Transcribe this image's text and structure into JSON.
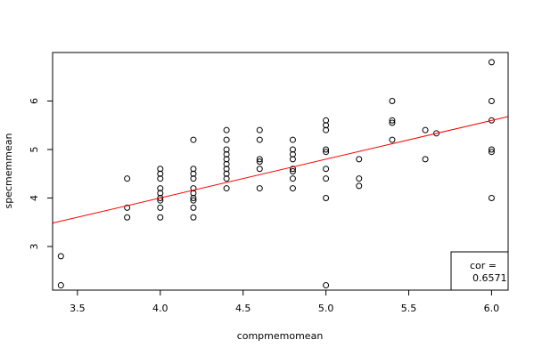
{
  "chart_data": {
    "type": "scatter",
    "title": "",
    "xlabel": "compmemomean",
    "ylabel": "specmemmean",
    "xlim": [
      3.35,
      6.1
    ],
    "ylim": [
      2.1,
      7.0
    ],
    "x_ticks": [
      3.5,
      4.0,
      4.5,
      5.0,
      5.5,
      6.0
    ],
    "x_tick_labels": [
      "3.5",
      "4.0",
      "4.5",
      "5.0",
      "5.5",
      "6.0"
    ],
    "y_ticks": [
      3,
      4,
      5,
      6
    ],
    "y_tick_labels": [
      "3",
      "4",
      "5",
      "6"
    ],
    "grid": false,
    "points": [
      [
        3.4,
        2.8
      ],
      [
        3.4,
        2.2
      ],
      [
        3.8,
        4.4
      ],
      [
        3.8,
        3.8
      ],
      [
        3.8,
        3.6
      ],
      [
        4.0,
        4.6
      ],
      [
        4.0,
        4.5
      ],
      [
        4.0,
        4.4
      ],
      [
        4.0,
        4.2
      ],
      [
        4.0,
        4.1
      ],
      [
        4.0,
        4.0
      ],
      [
        4.0,
        3.95
      ],
      [
        4.0,
        3.8
      ],
      [
        4.0,
        3.6
      ],
      [
        4.2,
        5.2
      ],
      [
        4.2,
        4.6
      ],
      [
        4.2,
        4.5
      ],
      [
        4.2,
        4.4
      ],
      [
        4.2,
        4.2
      ],
      [
        4.2,
        4.1
      ],
      [
        4.2,
        4.0
      ],
      [
        4.2,
        3.95
      ],
      [
        4.2,
        3.8
      ],
      [
        4.2,
        3.6
      ],
      [
        4.4,
        5.4
      ],
      [
        4.4,
        5.2
      ],
      [
        4.4,
        5.0
      ],
      [
        4.4,
        4.9
      ],
      [
        4.4,
        4.8
      ],
      [
        4.4,
        4.7
      ],
      [
        4.4,
        4.6
      ],
      [
        4.4,
        4.5
      ],
      [
        4.4,
        4.4
      ],
      [
        4.4,
        4.2
      ],
      [
        4.6,
        5.4
      ],
      [
        4.6,
        5.2
      ],
      [
        4.6,
        4.8
      ],
      [
        4.6,
        4.75
      ],
      [
        4.6,
        4.6
      ],
      [
        4.6,
        4.2
      ],
      [
        4.8,
        5.2
      ],
      [
        4.8,
        5.0
      ],
      [
        4.8,
        4.9
      ],
      [
        4.8,
        4.8
      ],
      [
        4.8,
        4.6
      ],
      [
        4.8,
        4.55
      ],
      [
        4.8,
        4.4
      ],
      [
        4.8,
        4.2
      ],
      [
        5.0,
        5.6
      ],
      [
        5.0,
        5.5
      ],
      [
        5.0,
        5.4
      ],
      [
        5.0,
        5.0
      ],
      [
        5.0,
        4.95
      ],
      [
        5.0,
        4.6
      ],
      [
        5.0,
        4.4
      ],
      [
        5.0,
        4.0
      ],
      [
        5.0,
        2.2
      ],
      [
        5.2,
        4.8
      ],
      [
        5.2,
        4.4
      ],
      [
        5.2,
        4.25
      ],
      [
        5.4,
        6.0
      ],
      [
        5.4,
        5.6
      ],
      [
        5.4,
        5.55
      ],
      [
        5.4,
        5.2
      ],
      [
        5.6,
        5.4
      ],
      [
        5.6,
        4.8
      ],
      [
        5.667,
        5.333
      ],
      [
        6.0,
        6.8
      ],
      [
        6.0,
        6.0
      ],
      [
        6.0,
        5.6
      ],
      [
        6.0,
        5.0
      ],
      [
        6.0,
        4.95
      ],
      [
        6.0,
        4.0
      ]
    ],
    "fit_line": {
      "intercept": 0.81,
      "slope": 0.798,
      "color": "#ff0000"
    },
    "annotation": {
      "label": "cor =",
      "value": "0.6571",
      "placement": "bottom-right"
    }
  }
}
